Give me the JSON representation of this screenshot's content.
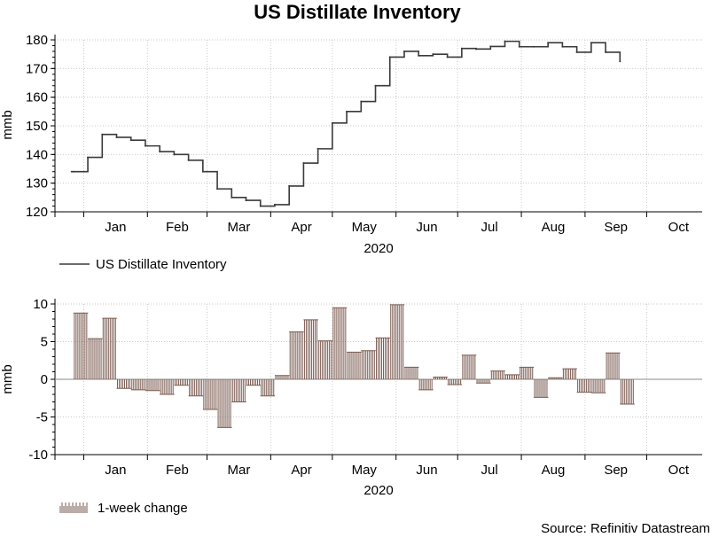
{
  "title": "US Distillate Inventory",
  "source": "Source: Refinitiv Datastream",
  "colors": {
    "line": "#3a3a3a",
    "bar": "#7a5a50",
    "grid": "#c9c9c9",
    "zero": "#8a8a8a"
  },
  "chart_data": [
    {
      "type": "line",
      "title": "US Distillate Inventory",
      "ylabel": "mmb",
      "xlabel": "2020",
      "ylim": [
        120,
        180
      ],
      "yticks": [
        120,
        130,
        140,
        150,
        160,
        170,
        180
      ],
      "months": [
        "Jan",
        "Feb",
        "Mar",
        "Apr",
        "May",
        "Jun",
        "Jul",
        "Aug",
        "Sep",
        "Oct"
      ],
      "legend": "US Distillate Inventory",
      "series": [
        {
          "name": "US Distillate Inventory",
          "weeks": [
            "2019-12-27",
            "2020-01-03",
            "2020-01-10",
            "2020-01-17",
            "2020-01-24",
            "2020-01-31",
            "2020-02-07",
            "2020-02-14",
            "2020-02-21",
            "2020-02-28",
            "2020-03-06",
            "2020-03-13",
            "2020-03-20",
            "2020-03-27",
            "2020-04-03",
            "2020-04-10",
            "2020-04-17",
            "2020-04-24",
            "2020-05-01",
            "2020-05-08",
            "2020-05-15",
            "2020-05-22",
            "2020-05-29",
            "2020-06-05",
            "2020-06-12",
            "2020-06-19",
            "2020-06-26",
            "2020-07-03",
            "2020-07-10",
            "2020-07-17",
            "2020-07-24",
            "2020-07-31",
            "2020-08-07",
            "2020-08-14",
            "2020-08-21",
            "2020-08-28",
            "2020-09-04",
            "2020-09-11",
            "2020-09-18"
          ],
          "values": [
            134,
            139,
            147,
            146,
            145,
            143,
            141,
            140,
            138,
            134,
            128,
            125,
            124,
            122,
            122.5,
            129,
            137,
            142,
            151,
            155,
            158.5,
            164,
            174,
            176,
            174.5,
            175,
            174,
            177,
            176.8,
            177.7,
            179.5,
            177.6,
            177.6,
            179,
            177.6,
            175.7,
            179,
            175.7,
            172.5
          ]
        }
      ]
    },
    {
      "type": "bar",
      "ylabel": "mmb",
      "xlabel": "2020",
      "ylim": [
        -10,
        10
      ],
      "yticks": [
        -10,
        -5,
        0,
        5,
        10
      ],
      "months": [
        "Jan",
        "Feb",
        "Mar",
        "Apr",
        "May",
        "Jun",
        "Jul",
        "Aug",
        "Sep",
        "Oct"
      ],
      "legend": "1-week change",
      "series": [
        {
          "name": "1-week change",
          "weeks": [
            "2019-12-27",
            "2020-01-03",
            "2020-01-10",
            "2020-01-17",
            "2020-01-24",
            "2020-01-31",
            "2020-02-07",
            "2020-02-14",
            "2020-02-21",
            "2020-02-28",
            "2020-03-06",
            "2020-03-13",
            "2020-03-20",
            "2020-03-27",
            "2020-04-03",
            "2020-04-10",
            "2020-04-17",
            "2020-04-24",
            "2020-05-01",
            "2020-05-08",
            "2020-05-15",
            "2020-05-22",
            "2020-05-29",
            "2020-06-05",
            "2020-06-12",
            "2020-06-19",
            "2020-06-26",
            "2020-07-03",
            "2020-07-10",
            "2020-07-17",
            "2020-07-24",
            "2020-07-31",
            "2020-08-07",
            "2020-08-14",
            "2020-08-21",
            "2020-08-28",
            "2020-09-04",
            "2020-09-11",
            "2020-09-18"
          ],
          "values": [
            8.8,
            5.4,
            8.1,
            -1.2,
            -1.4,
            -1.5,
            -2,
            -0.8,
            -2.2,
            -4,
            -6.4,
            -3,
            -0.8,
            -2.2,
            0.5,
            6.3,
            7.9,
            5.1,
            9.5,
            3.6,
            3.8,
            5.5,
            9.9,
            1.6,
            -1.4,
            0.3,
            -0.7,
            3.2,
            -0.5,
            1.1,
            0.6,
            1.6,
            -2.4,
            0.2,
            1.4,
            -1.7,
            -1.8,
            3.5,
            -3.3
          ]
        }
      ]
    }
  ]
}
